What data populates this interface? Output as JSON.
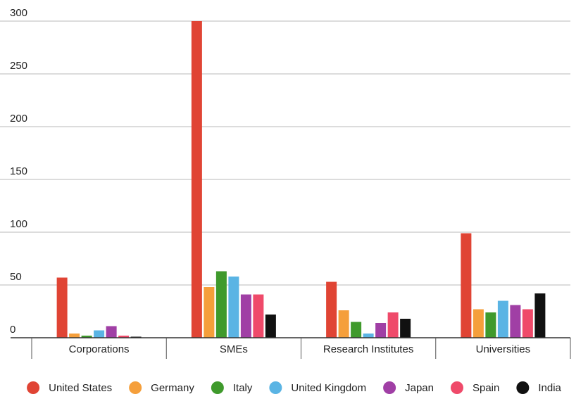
{
  "chart_data": {
    "type": "bar",
    "categories": [
      "Corporations",
      "SMEs",
      "Research Institutes",
      "Universities"
    ],
    "series": [
      {
        "name": "United States",
        "color": "#e04434",
        "values": [
          57,
          300,
          53,
          99
        ]
      },
      {
        "name": "Germany",
        "color": "#f59f3b",
        "values": [
          4,
          48,
          26,
          27
        ]
      },
      {
        "name": "Italy",
        "color": "#3f9a2c",
        "values": [
          2,
          63,
          15,
          24
        ]
      },
      {
        "name": "United Kingdom",
        "color": "#5ab4e4",
        "values": [
          7,
          58,
          4,
          35
        ]
      },
      {
        "name": "Japan",
        "color": "#a03fa5",
        "values": [
          11,
          41,
          14,
          31
        ]
      },
      {
        "name": "Spain",
        "color": "#ef4a6a",
        "values": [
          2,
          41,
          24,
          27
        ]
      },
      {
        "name": "India",
        "color": "#111111",
        "values": [
          1,
          22,
          18,
          42
        ]
      }
    ],
    "yticks": [
      "0",
      "50",
      "100",
      "150",
      "200",
      "250",
      "300"
    ],
    "ylim": [
      0,
      300
    ],
    "grid": true,
    "legend": "bottom"
  }
}
